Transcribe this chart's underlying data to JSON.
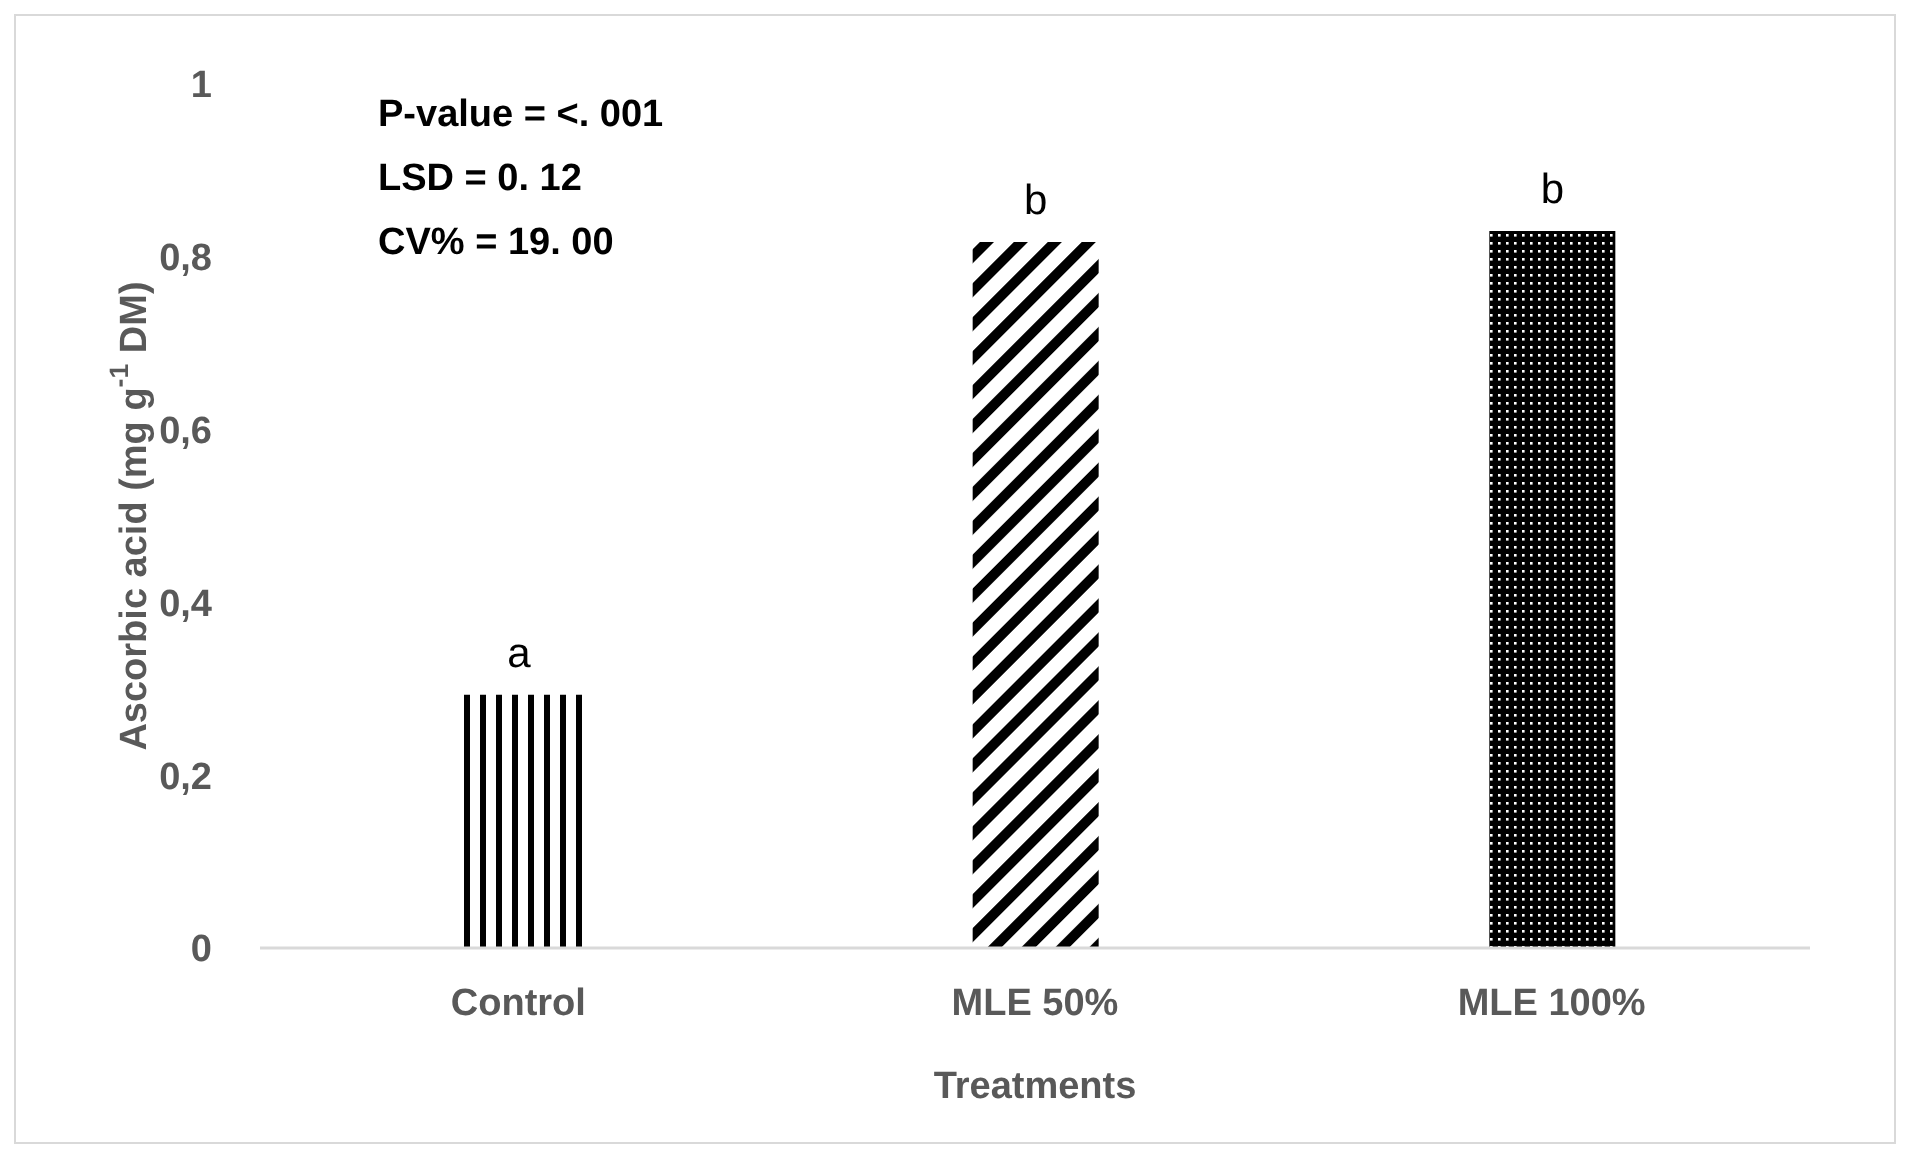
{
  "chart_data": {
    "type": "bar",
    "xlabel": "Treatments",
    "ylabel": "Ascorbic acid (mg g$^{-1}$ DM)",
    "categories": [
      "Control",
      "MLE 50%",
      "MLE 100%"
    ],
    "values": [
      0.293,
      0.817,
      0.83
    ],
    "colors": [
      "#000000",
      "#000000",
      "#000000"
    ],
    "value_labels": [
      "a",
      "b",
      "b"
    ],
    "ylim": [
      0,
      1
    ],
    "yticks": [
      0,
      {
        "value": 0.2,
        "label": "0,2"
      },
      {
        "value": 0.4,
        "label": "0,4"
      },
      {
        "value": 0.6,
        "label": "0,6"
      },
      {
        "value": 0.8,
        "label": "0,8"
      },
      1
    ],
    "grid": false,
    "legend": false,
    "annotations": [
      "P-value = <. 001",
      "LSD = 0. 12",
      "CV% = 19. 00"
    ]
  }
}
